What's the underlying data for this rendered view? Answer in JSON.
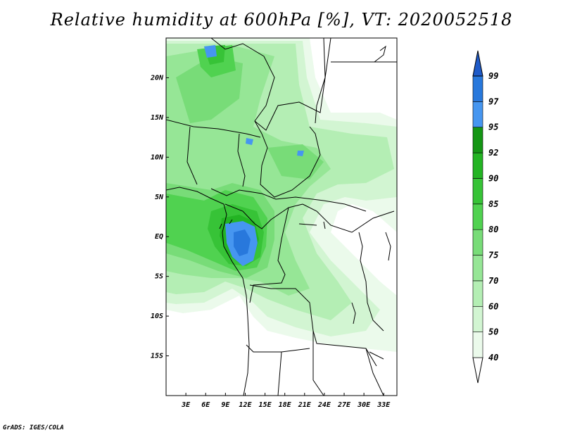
{
  "title": "Relative humidity at 600hPa [%], VT: 2020052518",
  "credit": "GrADS: IGES/COLA",
  "map": {
    "lon_range": [
      0,
      35
    ],
    "lat_range": [
      -20,
      25
    ],
    "lat_ticks": [
      {
        "value": 20,
        "label": "20N"
      },
      {
        "value": 15,
        "label": "15N"
      },
      {
        "value": 10,
        "label": "10N"
      },
      {
        "value": 5,
        "label": "5N"
      },
      {
        "value": 0,
        "label": "EQ"
      },
      {
        "value": -5,
        "label": "5S"
      },
      {
        "value": -10,
        "label": "10S"
      },
      {
        "value": -15,
        "label": "15S"
      }
    ],
    "lon_ticks": [
      {
        "value": 3,
        "label": "3E"
      },
      {
        "value": 6,
        "label": "6E"
      },
      {
        "value": 9,
        "label": "9E"
      },
      {
        "value": 12,
        "label": "12E"
      },
      {
        "value": 15,
        "label": "15E"
      },
      {
        "value": 18,
        "label": "18E"
      },
      {
        "value": 21,
        "label": "21E"
      },
      {
        "value": 24,
        "label": "24E"
      },
      {
        "value": 27,
        "label": "27E"
      },
      {
        "value": 30,
        "label": "30E"
      },
      {
        "value": 33,
        "label": "33E"
      }
    ]
  },
  "colorbar": {
    "levels": [
      {
        "label": "40",
        "color": "#ebfaeb"
      },
      {
        "label": "50",
        "color": "#d2f5d2"
      },
      {
        "label": "60",
        "color": "#b4eeb4"
      },
      {
        "label": "70",
        "color": "#96e696"
      },
      {
        "label": "75",
        "color": "#78dc78"
      },
      {
        "label": "80",
        "color": "#50d250"
      },
      {
        "label": "85",
        "color": "#37c337"
      },
      {
        "label": "90",
        "color": "#23b423"
      },
      {
        "label": "92",
        "color": "#149614"
      },
      {
        "label": "95",
        "color": "#4696f0"
      },
      {
        "label": "97",
        "color": "#2878dc"
      },
      {
        "label": "99",
        "color": "#1e5ac8"
      }
    ]
  }
}
